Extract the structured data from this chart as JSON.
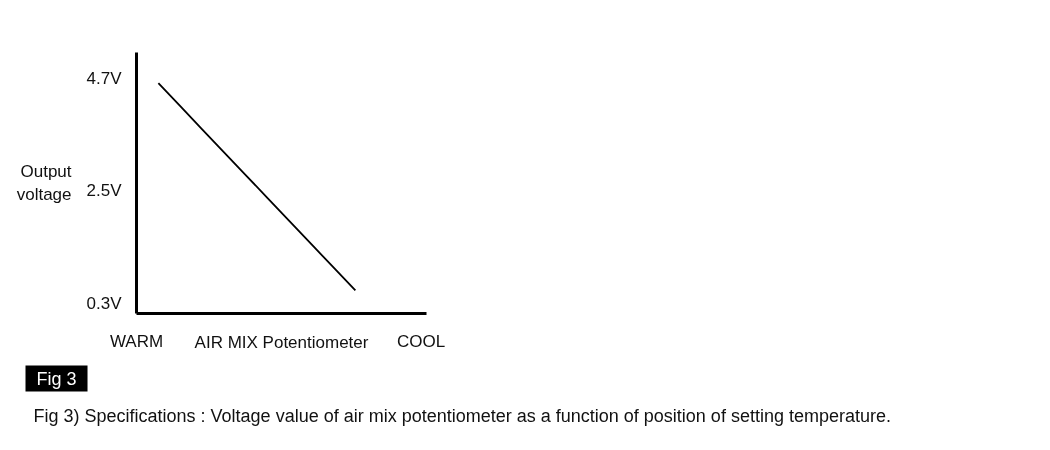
{
  "chart_data": {
    "type": "line",
    "xlabel": "AIR MIX Potentiometer",
    "ylabel": "Output voltage",
    "categories": [
      "WARM",
      null,
      null,
      null,
      null,
      null,
      null,
      null,
      null,
      null,
      null,
      null,
      null,
      "COOL"
    ],
    "series": [
      {
        "color": "#000000",
        "values": [
          null,
          4.6,
          4.15,
          3.7,
          3.25,
          2.8,
          2.35,
          1.9,
          1.45,
          1.0,
          0.55,
          null,
          null,
          null
        ]
      }
    ],
    "ylim": [
      0.1,
      5.2
    ],
    "yticks": [
      {
        "value": 0.3,
        "label": "0.3V"
      },
      {
        "value": 2.5,
        "label": "2.5V"
      },
      {
        "value": 4.7,
        "label": "4.7V"
      }
    ],
    "annotations": [
      "Fig 3",
      "Fig 3) Specifications : Voltage value of air mix potentiometer as a function of position of setting temperature."
    ]
  }
}
